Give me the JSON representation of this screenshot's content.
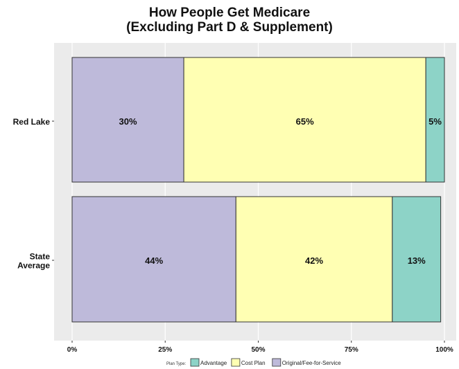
{
  "chart_data": {
    "type": "bar",
    "orientation": "horizontal",
    "stacked": true,
    "title": "How People Get Medicare",
    "subtitle": "(Excluding Part D & Supplement)",
    "categories": [
      "Red Lake",
      "State Average"
    ],
    "category_labels": [
      [
        "Red Lake"
      ],
      [
        "State",
        "Average"
      ]
    ],
    "series": [
      {
        "name": "Original/Fee-for-Service",
        "values": [
          30,
          44
        ],
        "labels": [
          "30%",
          "44%"
        ],
        "color": "#bebada"
      },
      {
        "name": "Cost Plan",
        "values": [
          65,
          42
        ],
        "labels": [
          "65%",
          "42%"
        ],
        "color": "#ffffb3"
      },
      {
        "name": "Advantage",
        "values": [
          5,
          13
        ],
        "labels": [
          "5%",
          "13%"
        ],
        "color": "#8dd3c7"
      }
    ],
    "xlim": [
      0,
      100
    ],
    "x_ticks": [
      0,
      25,
      50,
      75,
      100
    ],
    "x_tick_labels": [
      "0%",
      "25%",
      "50%",
      "75%",
      "100%"
    ],
    "legend": {
      "title": "Plan Type",
      "position": "bottom",
      "order": [
        "Advantage",
        "Cost Plan",
        "Original/Fee-for-Service"
      ]
    },
    "background": "#ebebeb"
  }
}
